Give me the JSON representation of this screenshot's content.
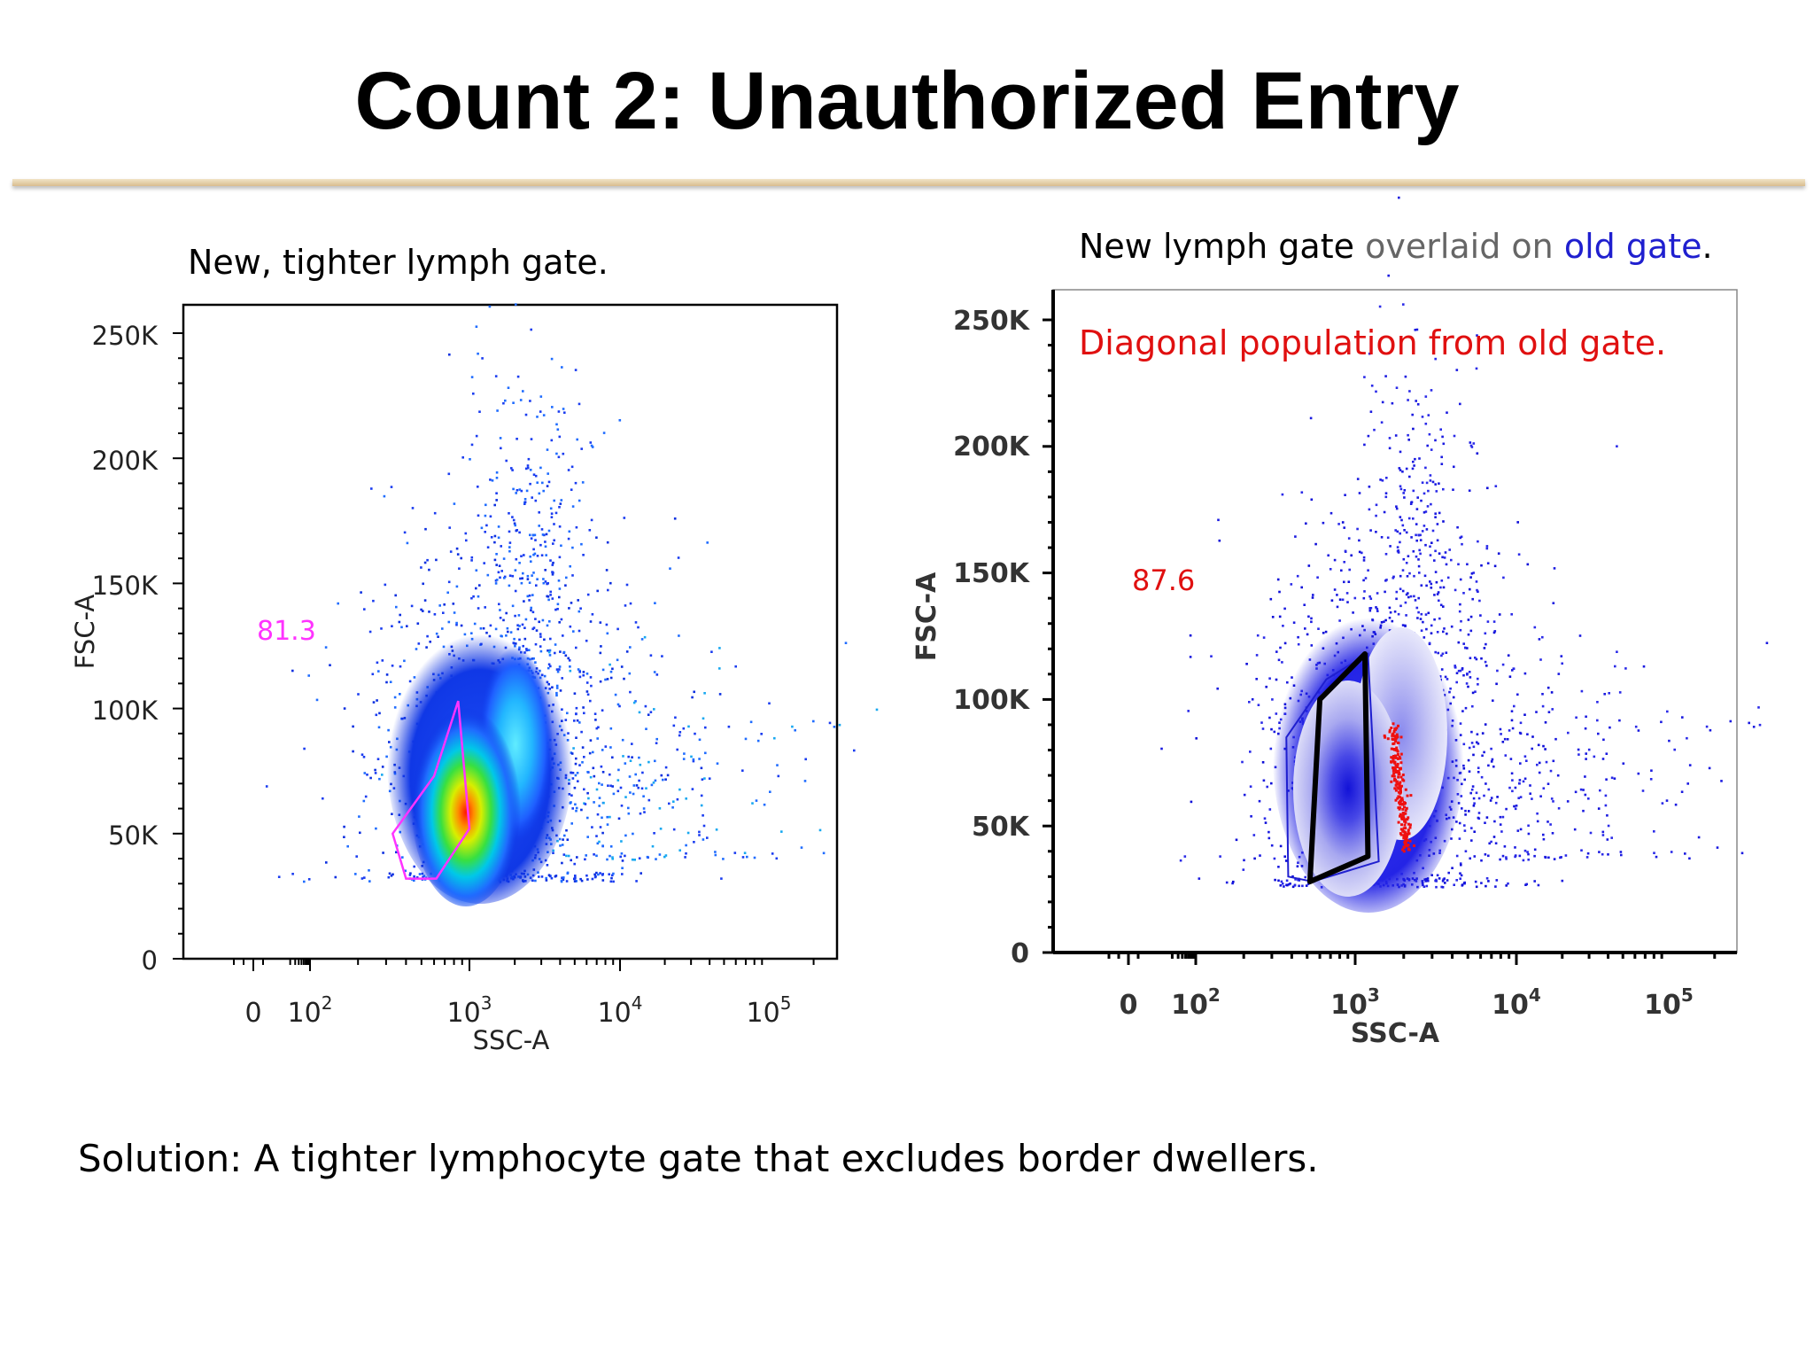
{
  "slide": {
    "title": "Count 2: Unauthorized Entry",
    "solution": "Solution:  A tighter lymphocyte gate that excludes border dwellers."
  },
  "captions": {
    "left": "New, tighter lymph gate.",
    "right": {
      "part1": "New lymph gate ",
      "part2": "overlaid on ",
      "part3": "old gate",
      "part4": "."
    }
  },
  "chart_data": [
    {
      "type": "scatter",
      "title": "",
      "xlabel": "SSC-A",
      "ylabel": "FSC-A",
      "x_scale": "biexponential",
      "x_ticks": [
        "0",
        "10",
        "10",
        "10",
        "10"
      ],
      "x_tick_exponents": [
        "",
        "2",
        "3",
        "4",
        "5"
      ],
      "y_ticks": [
        "0",
        "50K",
        "100K",
        "150K",
        "200K",
        "250K"
      ],
      "ylim": [
        0,
        262144
      ],
      "gate_label": "81.3",
      "gate_color": "#ff33ff",
      "gate_polygon_ssc_fsc": [
        [
          400,
          32000
        ],
        [
          620,
          32000
        ],
        [
          1000,
          52000
        ],
        [
          850,
          103000
        ],
        [
          600,
          73000
        ],
        [
          330,
          50000
        ]
      ],
      "populations": [
        {
          "name": "",
          "center_ssc": 800,
          "center_fsc": 56000,
          "peak": "red"
        },
        {
          "name": "",
          "center_ssc": 1600,
          "center_fsc": 75000,
          "peak": "cyan"
        }
      ]
    },
    {
      "type": "scatter",
      "title": "",
      "xlabel": "SSC-A",
      "ylabel": "FSC-A",
      "x_scale": "biexponential",
      "x_ticks": [
        "0",
        "10",
        "10",
        "10",
        "10"
      ],
      "x_tick_exponents": [
        "",
        "2",
        "3",
        "4",
        "5"
      ],
      "y_ticks": [
        "0",
        "50K",
        "100K",
        "150K",
        "200K",
        "250K"
      ],
      "ylim": [
        0,
        262144
      ],
      "gate_label": "87.6",
      "gate_label_color": "#e01010",
      "annotation": "Diagonal population from old gate.",
      "annotation_color": "#e01010",
      "new_gate_color": "#000000",
      "old_gate_color": "#1f1fcf",
      "new_gate_polygon_ssc_fsc": [
        [
          520,
          28000
        ],
        [
          1200,
          38000
        ],
        [
          1150,
          118000
        ],
        [
          600,
          100000
        ]
      ],
      "old_gate_polygon_ssc_fsc": [
        [
          380,
          30000
        ],
        [
          540,
          28000
        ],
        [
          1400,
          36000
        ],
        [
          1200,
          118000
        ],
        [
          660,
          108000
        ],
        [
          370,
          85000
        ]
      ]
    }
  ]
}
